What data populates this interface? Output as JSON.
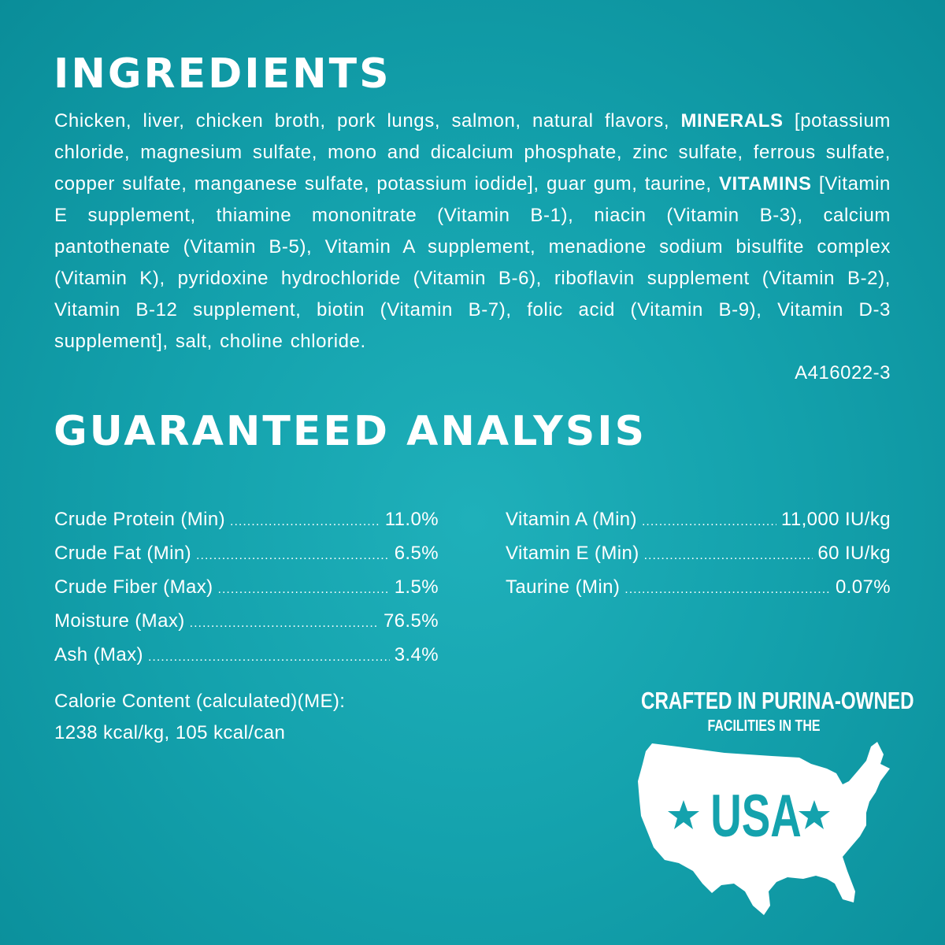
{
  "ingredients": {
    "title": "INGREDIENTS",
    "text_1": "Chicken, liver, chicken broth, pork lungs, salmon, natural flavors, ",
    "bold_1": "MINERALS",
    "text_2": " [potassium chloride, magnesium sulfate, mono and dicalcium phosphate, zinc sulfate, ferrous sulfate, copper sulfate, manganese sulfate, potassium iodide], guar gum, taurine, ",
    "bold_2": "VITAMINS",
    "text_3": " [Vitamin E supplement, thiamine mononitrate (Vitamin B-1), niacin (Vitamin B-3), calcium pantothenate (Vitamin B-5), Vitamin A supplement, menadione sodium bisulfite complex (Vitamin K), pyridoxine hydrochloride (Vitamin B-6), riboflavin supplement (Vitamin B-2), Vitamin B-12 supplement, biotin (Vitamin B-7), folic acid (Vitamin B-9), Vitamin D-3 supplement], salt, choline chloride.",
    "code": "A416022-3"
  },
  "analysis": {
    "title": "GUARANTEED ANALYSIS",
    "left": [
      {
        "label": "Crude Protein (Min)",
        "value": "11.0%"
      },
      {
        "label": "Crude Fat (Min)",
        "value": "6.5%"
      },
      {
        "label": "Crude Fiber (Max)",
        "value": "1.5%"
      },
      {
        "label": "Moisture (Max)",
        "value": "76.5%"
      },
      {
        "label": "Ash (Max)",
        "value": "3.4%"
      }
    ],
    "right": [
      {
        "label": "Vitamin A (Min)",
        "value": "11,000 IU/kg"
      },
      {
        "label": "Vitamin E (Min)",
        "value": "60 IU/kg"
      },
      {
        "label": "Taurine (Min)",
        "value": "0.07%"
      }
    ],
    "calorie_label": "Calorie Content (calculated)(ME):",
    "calorie_value": "1238 kcal/kg, 105 kcal/can"
  },
  "badge": {
    "line1": "CRAFTED IN PURINA-OWNED",
    "line2": "FACILITIES IN THE",
    "country": "USA",
    "icon": "usa-map-icon"
  },
  "colors": {
    "background": "#14a2ad",
    "text": "#ffffff"
  }
}
